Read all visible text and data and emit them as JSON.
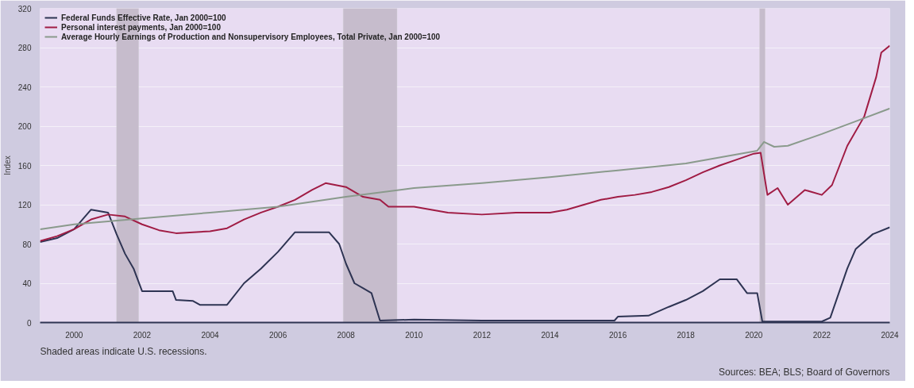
{
  "chart_data": {
    "type": "line",
    "ylabel": "Index",
    "xlim": [
      1999,
      2024
    ],
    "xticks": [
      2000,
      2002,
      2004,
      2006,
      2008,
      2010,
      2012,
      2014,
      2016,
      2018,
      2020,
      2022,
      2024
    ],
    "ylim": [
      0,
      320
    ],
    "yticks": [
      0,
      40,
      80,
      120,
      160,
      200,
      240,
      280,
      320
    ],
    "grid": "y",
    "legend": "top left",
    "line_style": "solid",
    "bands": [
      {
        "axis": "x",
        "from": 2001.25,
        "to": 2001.9,
        "color": "#c6bccc"
      },
      {
        "axis": "x",
        "from": 2007.92,
        "to": 2009.5,
        "color": "#c6bccc"
      },
      {
        "axis": "x",
        "from": 2020.17,
        "to": 2020.33,
        "color": "#c6bccc"
      }
    ],
    "annotations": [
      "Shaded areas indicate U.S. recessions.",
      "Sources: BEA; BLS; Board of Governors"
    ],
    "series": [
      {
        "name": "Federal Funds Effective Rate, Jan 2000=100",
        "color": "#2e3453",
        "x": [
          1999,
          1999.5,
          2000,
          2000.5,
          2001,
          2001.25,
          2001.5,
          2001.75,
          2002,
          2002.5,
          2002.9,
          2003,
          2003.5,
          2003.7,
          2004.5,
          2005,
          2005.5,
          2006,
          2006.5,
          2007.5,
          2007.8,
          2008,
          2008.25,
          2008.5,
          2008.75,
          2009,
          2010,
          2012,
          2014,
          2015.9,
          2016,
          2016.9,
          2017.5,
          2018,
          2018.5,
          2019,
          2019.5,
          2019.8,
          2020.1,
          2020.25,
          2022,
          2022.25,
          2022.75,
          2023,
          2023.5,
          2024
        ],
        "values": [
          82,
          86,
          95,
          115,
          112,
          90,
          70,
          55,
          32,
          32,
          32,
          23,
          22,
          18,
          18,
          40,
          55,
          72,
          92,
          92,
          80,
          60,
          40,
          35,
          30,
          2,
          3,
          2,
          2,
          2,
          6,
          7,
          16,
          23,
          32,
          44,
          44,
          30,
          30,
          1,
          1,
          5,
          55,
          75,
          90,
          97
        ]
      },
      {
        "name": "Personal interest payments, Jan 2000=100",
        "color": "#a01c44",
        "x": [
          1999,
          1999.5,
          2000,
          2000.5,
          2001,
          2001.5,
          2002,
          2002.5,
          2003,
          2004,
          2004.5,
          2005,
          2005.5,
          2006,
          2006.5,
          2007,
          2007.4,
          2008,
          2008.5,
          2009,
          2009.25,
          2010,
          2011,
          2012,
          2013,
          2014,
          2014.5,
          2015,
          2015.5,
          2016,
          2016.5,
          2017,
          2017.5,
          2018,
          2018.5,
          2019,
          2019.5,
          2020,
          2020.2,
          2020.4,
          2020.7,
          2021,
          2021.5,
          2022,
          2022.3,
          2022.75,
          2023.25,
          2023.6,
          2023.75,
          2024
        ],
        "values": [
          83,
          88,
          95,
          105,
          110,
          108,
          100,
          94,
          91,
          93,
          96,
          105,
          112,
          118,
          125,
          135,
          142,
          138,
          128,
          125,
          118,
          118,
          112,
          110,
          112,
          112,
          115,
          120,
          125,
          128,
          130,
          133,
          138,
          145,
          153,
          160,
          166,
          172,
          173,
          130,
          137,
          120,
          135,
          130,
          140,
          180,
          210,
          250,
          275,
          282
        ]
      },
      {
        "name": "Average Hourly Earnings of Production and Nonsupervisory Employees, Total Private, Jan 2000=100",
        "color": "#8a9a8c",
        "x": [
          1999,
          2000,
          2002,
          2004,
          2006,
          2008,
          2010,
          2012,
          2014,
          2016,
          2018,
          2020.1,
          2020.3,
          2020.6,
          2021,
          2022,
          2023,
          2024
        ],
        "values": [
          95,
          100,
          106,
          112,
          118,
          128,
          137,
          142,
          148,
          155,
          162,
          175,
          184,
          179,
          180,
          192,
          205,
          218
        ]
      }
    ]
  }
}
